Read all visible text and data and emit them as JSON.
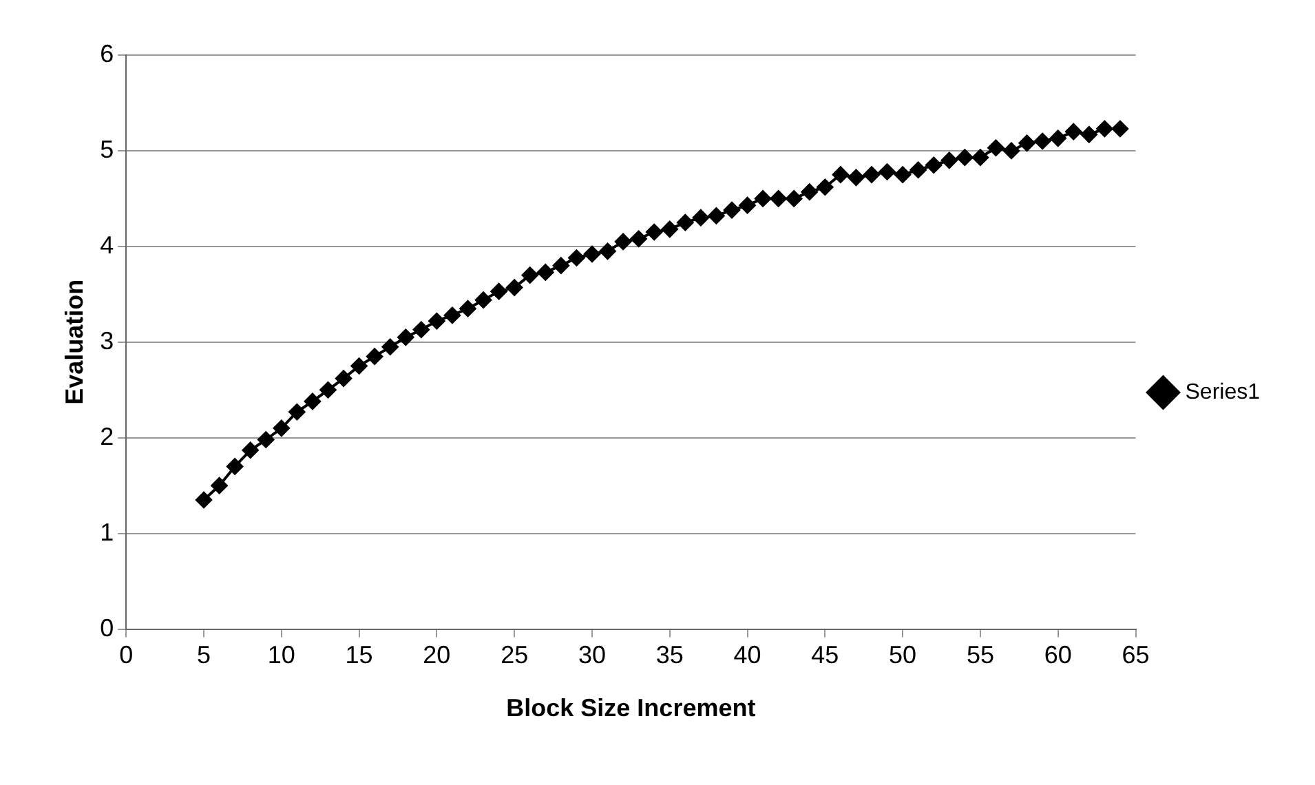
{
  "chart_data": {
    "type": "line",
    "xlabel": "Block Size Increment",
    "ylabel": "Evaluation",
    "x": [
      5,
      6,
      7,
      8,
      9,
      10,
      11,
      12,
      13,
      14,
      15,
      16,
      17,
      18,
      19,
      20,
      21,
      22,
      23,
      24,
      25,
      26,
      27,
      28,
      29,
      30,
      31,
      32,
      33,
      34,
      35,
      36,
      37,
      38,
      39,
      40,
      41,
      42,
      43,
      44,
      45,
      46,
      47,
      48,
      49,
      50,
      51,
      52,
      53,
      54,
      55,
      56,
      57,
      58,
      59,
      60,
      61,
      62,
      63,
      64
    ],
    "series": [
      {
        "name": "Series1",
        "color": "#000000",
        "values": [
          1.35,
          1.5,
          1.7,
          1.87,
          1.98,
          2.1,
          2.27,
          2.38,
          2.5,
          2.62,
          2.75,
          2.85,
          2.95,
          3.05,
          3.13,
          3.22,
          3.28,
          3.35,
          3.44,
          3.53,
          3.57,
          3.7,
          3.73,
          3.8,
          3.88,
          3.92,
          3.95,
          4.05,
          4.08,
          4.15,
          4.18,
          4.25,
          4.3,
          4.32,
          4.38,
          4.43,
          4.5,
          4.5,
          4.5,
          4.57,
          4.62,
          4.75,
          4.72,
          4.75,
          4.78,
          4.75,
          4.8,
          4.85,
          4.9,
          4.93,
          4.93,
          5.03,
          5.0,
          5.08,
          5.1,
          5.13,
          5.2,
          5.17,
          5.23,
          5.23
        ]
      }
    ],
    "xlim": [
      0,
      65
    ],
    "xticks": [
      0,
      5,
      10,
      15,
      20,
      25,
      30,
      35,
      40,
      45,
      50,
      55,
      60,
      65
    ],
    "ylim": [
      0,
      6
    ],
    "yticks": [
      0,
      1,
      2,
      3,
      4,
      5,
      6
    ],
    "grid": "y",
    "legend": "right",
    "marker": "diamond",
    "line_style": "solid"
  }
}
